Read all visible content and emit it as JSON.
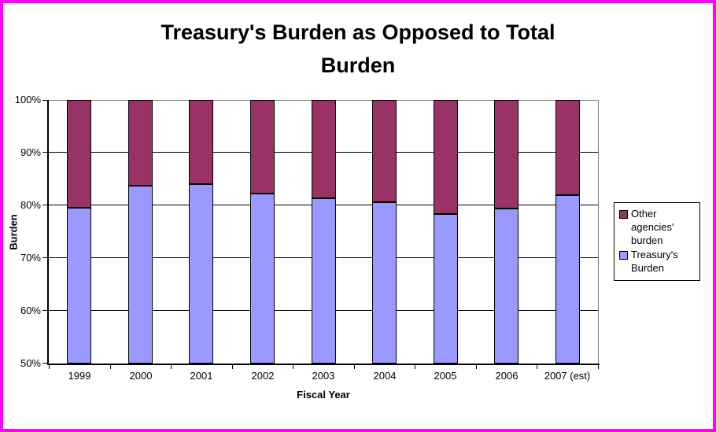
{
  "window": {
    "border_color": "#FF00FF",
    "background": "#FFFFFF"
  },
  "chart_data": {
    "type": "bar",
    "stacked": true,
    "title": "Treasury's Burden as Opposed to Total Burden",
    "title_lines": [
      "Treasury's Burden as Opposed to Total",
      "Burden"
    ],
    "xlabel": "Fiscal Year",
    "ylabel": "Burden",
    "categories": [
      "1999",
      "2000",
      "2001",
      "2002",
      "2003",
      "2004",
      "2005",
      "2006",
      "2007 (est)"
    ],
    "series": [
      {
        "name": "Treasury's Burden",
        "color": "#9999FF",
        "values": [
          79.5,
          83.7,
          84.0,
          82.2,
          81.4,
          80.6,
          78.3,
          79.4,
          82.0
        ]
      },
      {
        "name": "Other agencies' burden",
        "color": "#993366",
        "values": [
          20.5,
          16.3,
          16.0,
          17.8,
          18.6,
          19.4,
          21.7,
          20.6,
          18.0
        ]
      }
    ],
    "ylim": [
      50,
      100
    ],
    "ytick_step": 10,
    "ytick_labels": [
      "50%",
      "60%",
      "70%",
      "80%",
      "90%",
      "100%"
    ],
    "grid": true,
    "legend_position": "right",
    "legend": [
      {
        "label_lines": [
          "Other agencies'",
          "burden"
        ],
        "color": "#993366"
      },
      {
        "label_lines": [
          "Treasury's",
          "Burden"
        ],
        "color": "#9999FF"
      }
    ],
    "colors": {
      "gridline": "#000000",
      "plot_border": "#808080",
      "axis": "#000000"
    }
  }
}
